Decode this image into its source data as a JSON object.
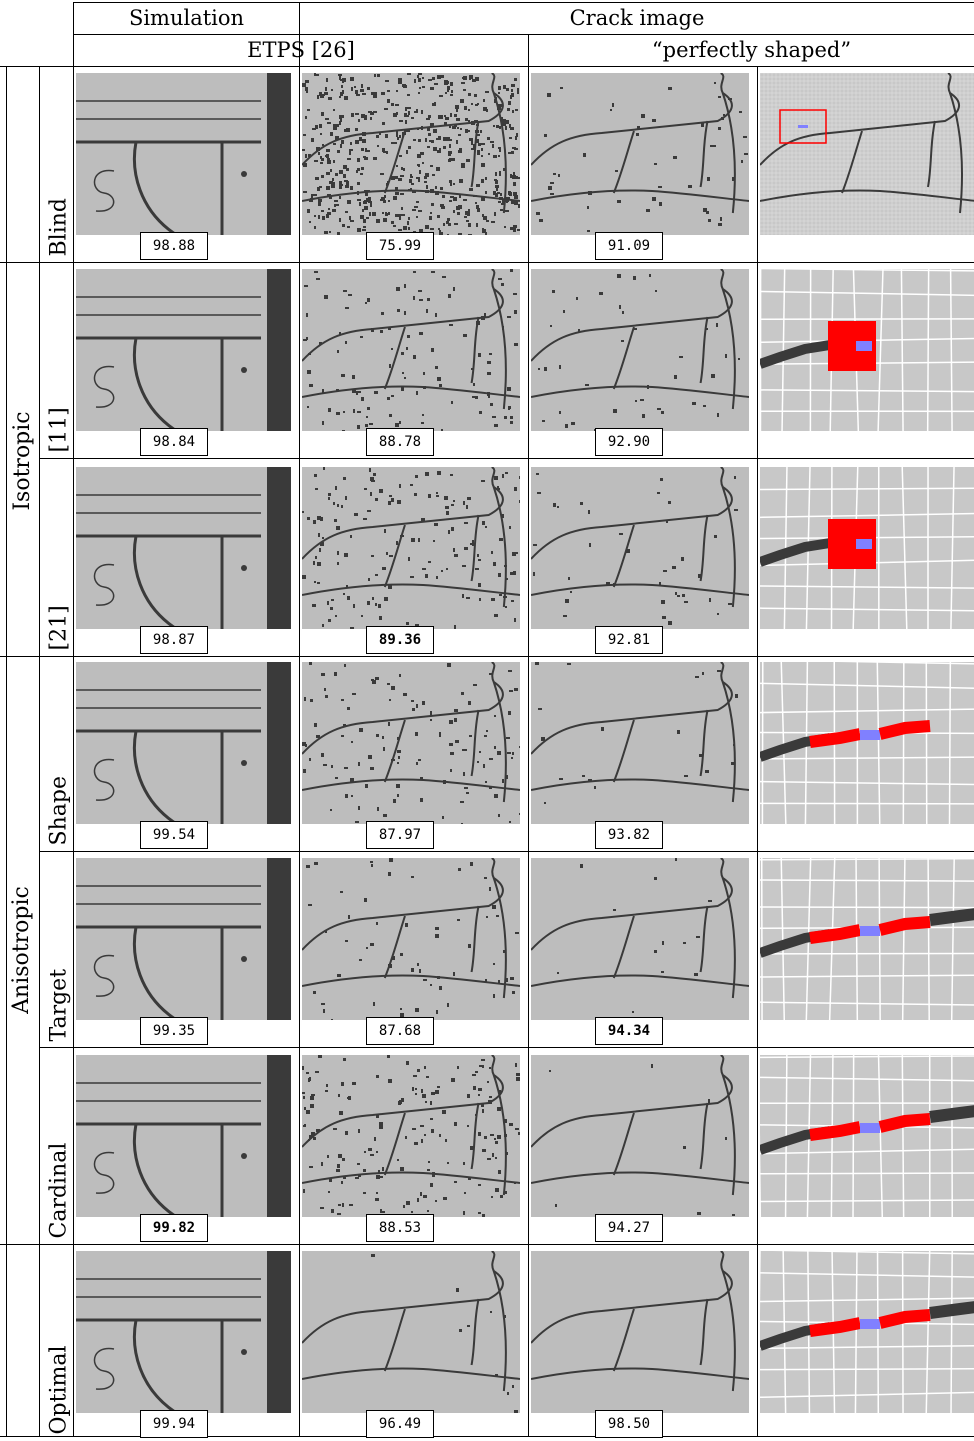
{
  "headers": {
    "simulation": "Simulation",
    "crack_image": "Crack image",
    "etps": "ETPS [26]",
    "perfect": "“perfectly shaped”"
  },
  "groups": {
    "isotropic": "Isotropic",
    "anisotropic": "Anisotropic"
  },
  "rows": [
    {
      "label": "Blind",
      "scores": [
        "98.88",
        "75.99",
        "91.09"
      ],
      "bold": [
        false,
        false,
        false
      ]
    },
    {
      "label": "[11]",
      "scores": [
        "98.84",
        "88.78",
        "92.90"
      ],
      "bold": [
        false,
        false,
        false
      ]
    },
    {
      "label": "[21]",
      "scores": [
        "98.87",
        "89.36",
        "92.81"
      ],
      "bold": [
        false,
        true,
        false
      ]
    },
    {
      "label": "Shape",
      "scores": [
        "99.54",
        "87.97",
        "93.82"
      ],
      "bold": [
        false,
        false,
        false
      ]
    },
    {
      "label": "Target",
      "scores": [
        "99.35",
        "87.68",
        "94.34"
      ],
      "bold": [
        false,
        false,
        true
      ]
    },
    {
      "label": "Cardinal",
      "scores": [
        "99.82",
        "88.53",
        "94.27"
      ],
      "bold": [
        true,
        false,
        false
      ]
    },
    {
      "label": "Optimal",
      "scores": [
        "99.94",
        "96.49",
        "98.50"
      ],
      "bold": [
        false,
        false,
        false
      ]
    }
  ],
  "colors": {
    "background_gray": "#bdbdbd",
    "crack_dark": "#3a3a3a",
    "highlight_red": "#ff0000",
    "highlight_blue": "#8080ff"
  }
}
